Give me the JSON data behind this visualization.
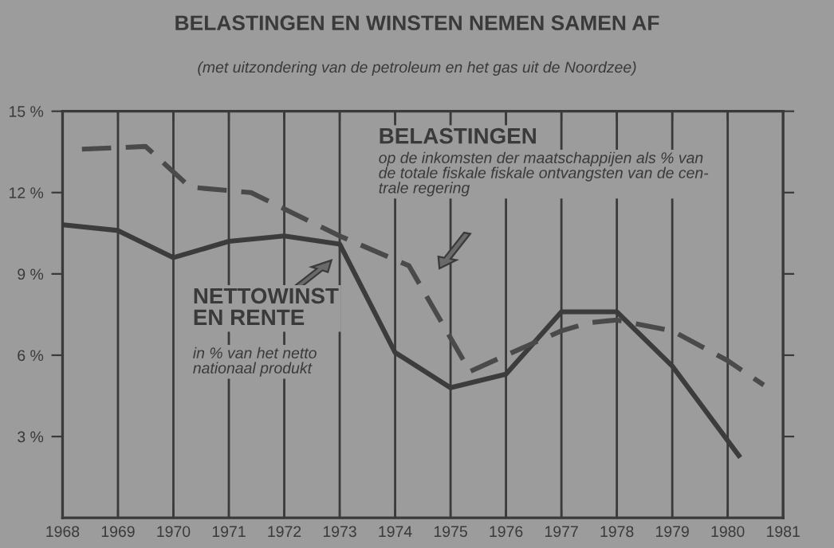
{
  "chart_data": {
    "type": "line",
    "title": "BELASTINGEN EN WINSTEN NEMEN SAMEN AF",
    "subtitle": "(met uitzondering van de petroleum en het gas uit de Noordzee)",
    "series": [
      {
        "color": "#3c3c3c",
        "line_style": "solid",
        "x": [
          1968.05,
          1969,
          1970,
          1971,
          1972,
          1973,
          1974,
          1975,
          1976,
          1977,
          1978,
          1979,
          1980.2
        ],
        "values": [
          10.8,
          10.6,
          9.6,
          10.2,
          10.4,
          10.1,
          6.1,
          4.8,
          5.3,
          7.6,
          7.6,
          5.6,
          2.3
        ]
      },
      {
        "color": "#4a4a4a",
        "line_style": "dashed",
        "x": [
          1968.35,
          1969.5,
          1970.3,
          1971.4,
          1972,
          1973,
          1974.25,
          1975.35,
          1976,
          1977,
          1977.5,
          1978,
          1979,
          1980,
          1980.65
        ],
        "values": [
          13.6,
          13.7,
          12.2,
          12.0,
          11.4,
          10.4,
          9.3,
          5.4,
          6.0,
          6.9,
          7.2,
          7.3,
          6.9,
          5.8,
          4.9
        ]
      }
    ],
    "annotations": [
      "NETTOWINST\nEN RENTE",
      "BELASTINGEN",
      "in % van het netto\nnationaal produkt",
      "op de inkomsten der maatschappijen als % van\nde totale fiskale fiskale ontvangsten van de cen-\ntrale regering"
    ],
    "xlim": [
      1968,
      1981
    ],
    "xticks": [
      1968,
      1969,
      1970,
      1971,
      1972,
      1973,
      1974,
      1975,
      1976,
      1977,
      1978,
      1979,
      1980,
      1981
    ],
    "ylim": [
      0,
      15
    ],
    "yticks": [
      {
        "value": 3,
        "label": "3 %"
      },
      {
        "value": 6,
        "label": "6 %"
      },
      {
        "value": 9,
        "label": "9 %"
      },
      {
        "value": 12,
        "label": "12 %"
      },
      {
        "value": 15,
        "label": "15 %"
      }
    ],
    "grid": "x",
    "legend": false,
    "marker": "none"
  }
}
